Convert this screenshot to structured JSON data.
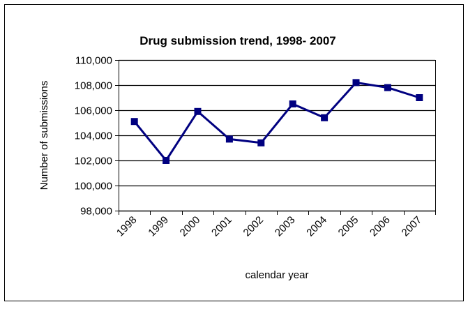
{
  "chart_data": {
    "type": "line",
    "title": "Drug submission trend, 1998- 2007",
    "xlabel": "calendar year",
    "ylabel": "Number of submissions",
    "categories": [
      "1998",
      "1999",
      "2000",
      "2001",
      "2002",
      "2003",
      "2004",
      "2005",
      "2006",
      "2007"
    ],
    "series": [
      {
        "values": [
          105100,
          102000,
          105900,
          103700,
          103400,
          106500,
          105400,
          108200,
          107800,
          107000
        ]
      }
    ],
    "ylim": [
      98000,
      110000
    ],
    "yticks": [
      98000,
      100000,
      102000,
      104000,
      106000,
      108000,
      110000
    ],
    "ytick_labels": [
      "98,000",
      "100,000",
      "102,000",
      "104,000",
      "106,000",
      "108,000",
      "110,000"
    ],
    "grid": true,
    "legend": "none",
    "colors": {
      "series": "#000080",
      "grid": "#000000",
      "frame": "#000000"
    }
  }
}
